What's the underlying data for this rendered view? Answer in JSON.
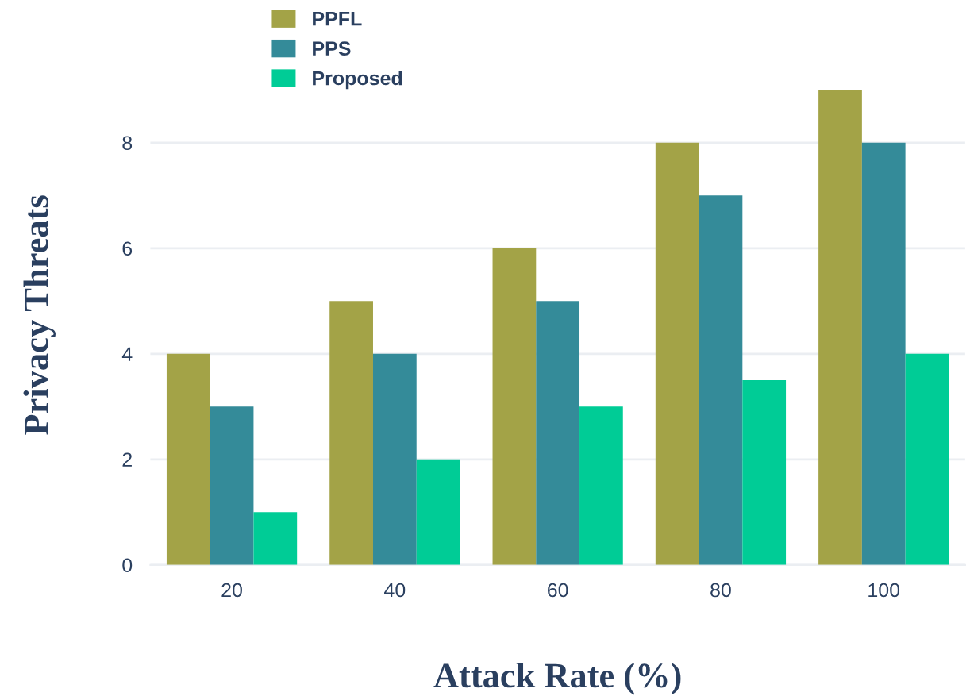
{
  "chart_data": {
    "type": "bar",
    "xlabel": "Attack Rate (%)",
    "ylabel": "Privacy Threats",
    "categories": [
      "20",
      "40",
      "60",
      "80",
      "100"
    ],
    "series": [
      {
        "name": "PPFL",
        "color": "#a3a347",
        "values": [
          4,
          5,
          6,
          8,
          9
        ]
      },
      {
        "name": "PPS",
        "color": "#348b99",
        "values": [
          3,
          4,
          5,
          7,
          8
        ]
      },
      {
        "name": "Proposed",
        "color": "#00cc96",
        "values": [
          1,
          2,
          3,
          3.5,
          4
        ]
      }
    ],
    "ylim": [
      0,
      9.47
    ],
    "yticks": [
      0,
      2,
      4,
      6,
      8
    ],
    "grid": "y",
    "legend": "top left"
  }
}
